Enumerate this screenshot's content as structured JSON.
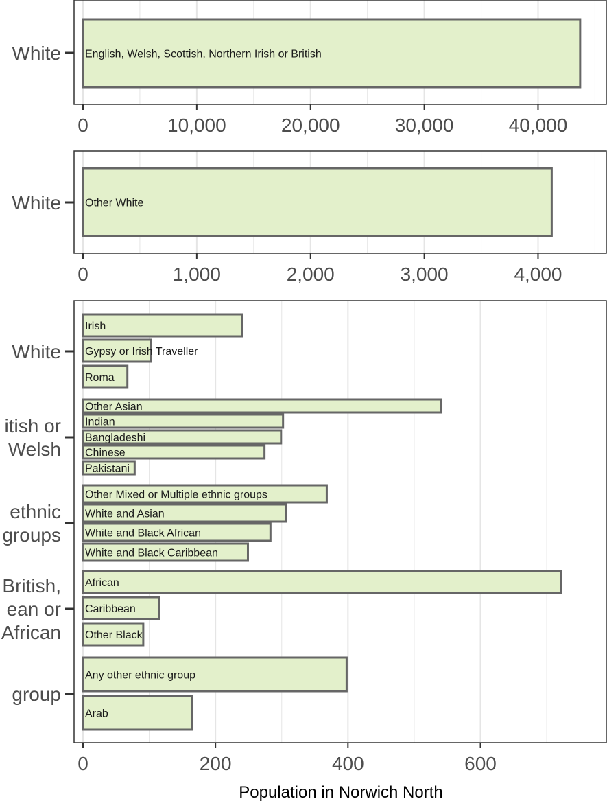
{
  "chart_data": {
    "type": "bar",
    "orientation": "horizontal",
    "xlabel": "Population in Norwich North",
    "colors": {
      "bar_fill": "#e3f0cb",
      "bar_stroke": "#666666",
      "grid": "#e5e5e5",
      "frame": "#333333"
    },
    "panels": [
      {
        "xlim": [
          0,
          46000
        ],
        "ticks": [
          0,
          10000,
          20000,
          30000,
          40000
        ],
        "tick_labels": [
          "0",
          "10,000",
          "20,000",
          "30,000",
          "40,000"
        ],
        "groups": [
          {
            "label": [
              "White"
            ],
            "bars": [
              {
                "category": "English, Welsh, Scottish, Northern Irish or British",
                "value": 43700
              }
            ]
          }
        ]
      },
      {
        "xlim": [
          0,
          4600
        ],
        "ticks": [
          0,
          1000,
          2000,
          3000,
          4000
        ],
        "tick_labels": [
          "0",
          "1,000",
          "2,000",
          "3,000",
          "4,000"
        ],
        "groups": [
          {
            "label": [
              "White"
            ],
            "bars": [
              {
                "category": "Other White",
                "value": 4120
              }
            ]
          }
        ]
      },
      {
        "xlim": [
          0,
          790
        ],
        "ticks": [
          0,
          200,
          400,
          600
        ],
        "tick_labels": [
          "0",
          "200",
          "400",
          "600"
        ],
        "groups": [
          {
            "label": [
              "White"
            ],
            "bars": [
              {
                "category": "Irish",
                "value": 240
              },
              {
                "category": "Gypsy or Irish Traveller",
                "value": 103
              },
              {
                "category": "Roma",
                "value": 67
              }
            ]
          },
          {
            "label": [
              "itish or",
              "Welsh"
            ],
            "bars": [
              {
                "category": "Other Asian",
                "value": 541
              },
              {
                "category": "Indian",
                "value": 302
              },
              {
                "category": "Bangladeshi",
                "value": 299
              },
              {
                "category": "Chinese",
                "value": 274
              },
              {
                "category": "Pakistani",
                "value": 78
              }
            ]
          },
          {
            "label": [
              "ethnic",
              "groups"
            ],
            "bars": [
              {
                "category": "Other Mixed or Multiple ethnic groups",
                "value": 368
              },
              {
                "category": "White and Asian",
                "value": 306
              },
              {
                "category": "White and Black African",
                "value": 283
              },
              {
                "category": "White and Black Caribbean",
                "value": 249
              }
            ]
          },
          {
            "label": [
              "British,",
              "ean or",
              "African"
            ],
            "bars": [
              {
                "category": "African",
                "value": 722
              },
              {
                "category": "Caribbean",
                "value": 115
              },
              {
                "category": "Other Black",
                "value": 91
              }
            ]
          },
          {
            "label": [
              "group"
            ],
            "bars": [
              {
                "category": "Any other ethnic group",
                "value": 398
              },
              {
                "category": "Arab",
                "value": 165
              }
            ]
          }
        ]
      }
    ]
  }
}
